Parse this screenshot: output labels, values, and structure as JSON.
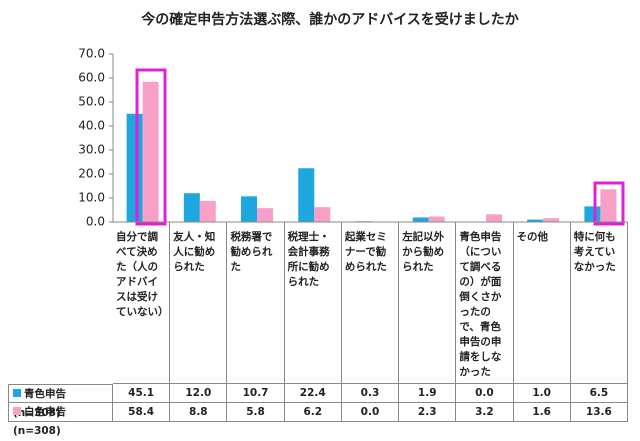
{
  "chart_data": {
    "type": "bar",
    "title": "今の確定申告方法選ぶ際、誰かのアドバイスを受けましたか",
    "categories": [
      "自分で調べて決めた（人のアドバイスは受けていない）",
      "友人・知人に勧められた",
      "税務署で勧められた",
      "税理士・会計事務所に勧められた",
      "起業セミナーで勧められた",
      "左記以外から勧められた",
      "青色申告（について調べるの）が面倒くさかったので、青色申告の申請をしなかった",
      "その他",
      "特に何も考えていなかった"
    ],
    "series": [
      {
        "name": "青色申告(n=308)",
        "color": "#1ea6de",
        "values": [
          45.1,
          12.0,
          10.7,
          22.4,
          0.3,
          1.9,
          0.0,
          1.0,
          6.5
        ],
        "value_labels": [
          "45.1",
          "12.0",
          "10.7",
          "22.4",
          "0.3",
          "1.9",
          "0.0",
          "1.0",
          "6.5"
        ]
      },
      {
        "name": "白色申告(n=308)",
        "color": "#f9a0c8",
        "values": [
          58.4,
          8.8,
          5.8,
          6.2,
          0.0,
          2.3,
          3.2,
          1.6,
          13.6
        ],
        "value_labels": [
          "58.4",
          "8.8",
          "5.8",
          "6.2",
          "0.0",
          "2.3",
          "3.2",
          "1.6",
          "13.6"
        ]
      }
    ],
    "ylim": [
      0,
      70
    ],
    "yticks": [
      {
        "value": 0,
        "label": "0.0"
      },
      {
        "value": 10,
        "label": "10.0"
      },
      {
        "value": 20,
        "label": "20.0"
      },
      {
        "value": 30,
        "label": "30.0"
      },
      {
        "value": 40,
        "label": "40.0"
      },
      {
        "value": 50,
        "label": "50.0"
      },
      {
        "value": 60,
        "label": "60.0"
      },
      {
        "value": 70,
        "label": "70.0"
      }
    ]
  }
}
